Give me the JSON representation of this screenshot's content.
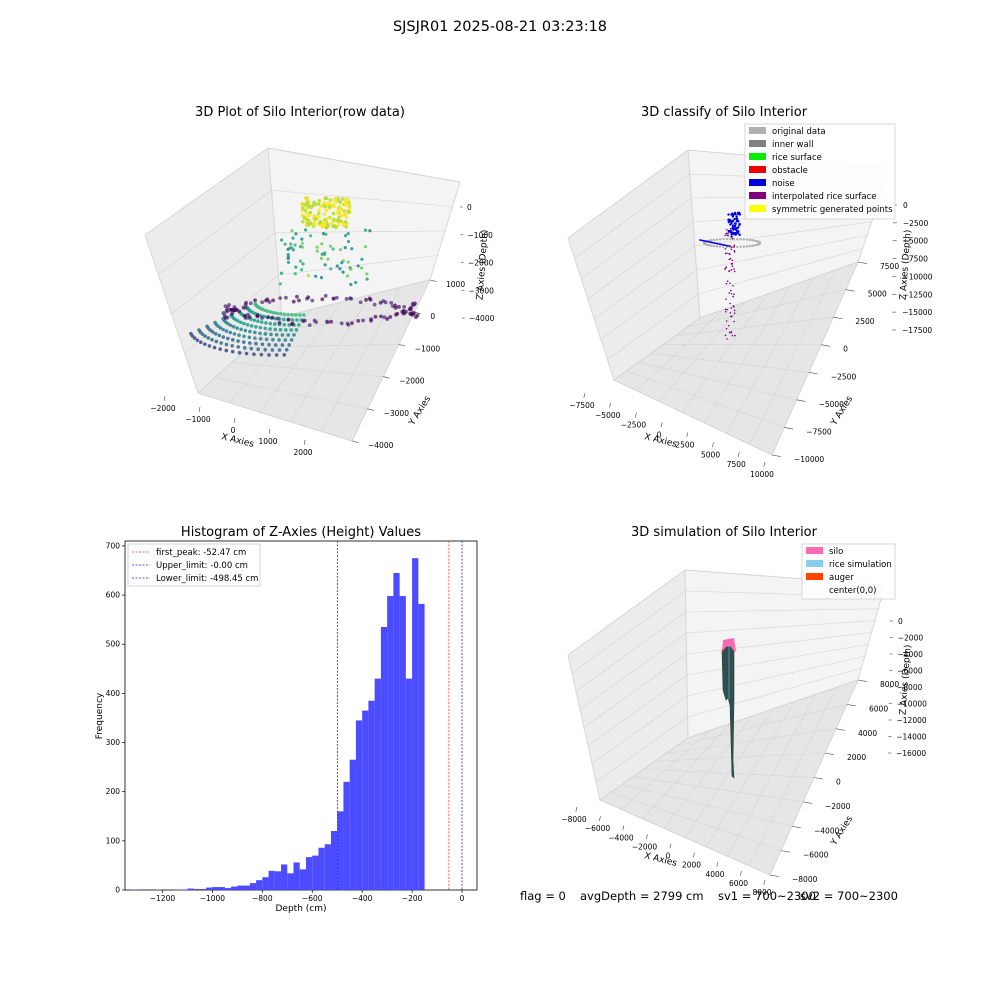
{
  "figure_title": "SJSJR01 2025-08-21 03:23:18",
  "footer": {
    "flag": "flag = 0",
    "avg_depth": "avgDepth = 2799 cm",
    "sv1": "sv1 = 700~2300",
    "sv2": "sv2 = 700~2300"
  },
  "chart_data": [
    {
      "type": "scatter",
      "title": "3D Plot of Silo Interior(row data)",
      "xlabel": "X Axies",
      "ylabel": "Y Axies",
      "zlabel": "Z Axies (Depth)",
      "x_ticks": [
        "−2000",
        "−1000",
        "0",
        "1000",
        "2000"
      ],
      "y_ticks": [
        "−4000",
        "−3000",
        "−2000",
        "−1000",
        "0",
        "1000"
      ],
      "z_ticks": [
        "−4000",
        "−3000",
        "−2000",
        "−1000",
        "0"
      ],
      "xlim": [
        -2300,
        2600
      ],
      "ylim": [
        -4500,
        1600
      ],
      "zlim": [
        -4800,
        200
      ],
      "colormap": "viridis",
      "point_groups": [
        {
          "shape": "cone-top",
          "x": 0,
          "y": 0,
          "z": [
            -800,
            0
          ],
          "radius": 250
        },
        {
          "shape": "scattered",
          "x": 0,
          "y": 0,
          "z": [
            -2500,
            -900
          ],
          "radius": 700
        },
        {
          "shape": "spiral-floor",
          "x": 0,
          "y": -1200,
          "z": [
            -4500,
            -3400
          ],
          "radius": 2300
        }
      ]
    },
    {
      "type": "scatter",
      "title": "3D classify of Silo Interior",
      "xlabel": "X Axies",
      "ylabel": "Y Axies",
      "zlabel": "Z Axies (Depth)",
      "x_ticks": [
        "−7500",
        "−5000",
        "−2500",
        "0",
        "2500",
        "5000",
        "7500",
        "10000"
      ],
      "y_ticks": [
        "−10000",
        "−7500",
        "−5000",
        "−2500",
        "0",
        "2500",
        "5000",
        "7500"
      ],
      "z_ticks": [
        "−17500",
        "−15000",
        "−12500",
        "−10000",
        "−7500",
        "−5000",
        "−2500",
        "0"
      ],
      "legend": [
        {
          "label": "original data",
          "color": "#b0b0b0"
        },
        {
          "label": "inner wall",
          "color": "#808080"
        },
        {
          "label": "rice surface",
          "color": "#00ee00"
        },
        {
          "label": "obstacle",
          "color": "#ee0000"
        },
        {
          "label": "noise",
          "color": "#0000dd"
        },
        {
          "label": "interpolated rice surface",
          "color": "#800080"
        },
        {
          "label": "symmetric generated points",
          "color": "#ffff00"
        }
      ],
      "legend_position": "top-right"
    },
    {
      "type": "bar",
      "title": "Histogram of Z-Axies (Height) Values",
      "xlabel": "Depth (cm)",
      "ylabel": "Frequency",
      "xlim": [
        -1350,
        60
      ],
      "ylim": [
        0,
        710
      ],
      "x_ticks": [
        -1200,
        -1000,
        -800,
        -600,
        -400,
        -200,
        0
      ],
      "y_ticks": [
        0,
        100,
        200,
        300,
        400,
        500,
        600,
        700
      ],
      "bin_start": -1325,
      "bin_width": 25,
      "values": [
        1,
        0,
        0,
        0,
        1,
        0,
        0,
        1,
        1,
        3,
        2,
        2,
        5,
        6,
        6,
        4,
        7,
        9,
        9,
        14,
        20,
        26,
        39,
        38,
        52,
        34,
        56,
        42,
        67,
        70,
        86,
        93,
        120,
        160,
        220,
        265,
        345,
        365,
        385,
        430,
        535,
        598,
        645,
        598,
        430,
        675,
        582
      ],
      "bar_color": "#4b4bff",
      "lines": [
        {
          "label": "first_peak: -52.47 cm",
          "value": -52.47,
          "color": "#ff3333"
        },
        {
          "label": "Upper_limit: -0.00 cm",
          "value": 0.0,
          "color": "#2222dd"
        },
        {
          "label": "Lower_limit: -498.45 cm",
          "value": -498.45,
          "color": "#2222dd"
        }
      ],
      "legend_position": "top-left"
    },
    {
      "type": "surface",
      "title": "3D simulation of Silo Interior",
      "xlabel": "X Axies",
      "ylabel": "Y Axies",
      "zlabel": "Z Axies (Depth)",
      "x_ticks": [
        "−8000",
        "−6000",
        "−4000",
        "−2000",
        "0",
        "2000",
        "4000",
        "6000",
        "8000"
      ],
      "y_ticks": [
        "−8000",
        "−6000",
        "−4000",
        "−2000",
        "0",
        "2000",
        "4000",
        "6000",
        "8000"
      ],
      "z_ticks": [
        "−16000",
        "−14000",
        "−12000",
        "−10000",
        "−8000",
        "−6000",
        "−4000",
        "−2000",
        "0"
      ],
      "legend": [
        {
          "label": "silo",
          "color": "#ff69b4"
        },
        {
          "label": "rice simulation",
          "color": "#87ceeb"
        },
        {
          "label": "auger",
          "color": "#ff4500"
        },
        {
          "label": "center(0,0)",
          "color": "none"
        }
      ],
      "legend_position": "top-right"
    }
  ]
}
